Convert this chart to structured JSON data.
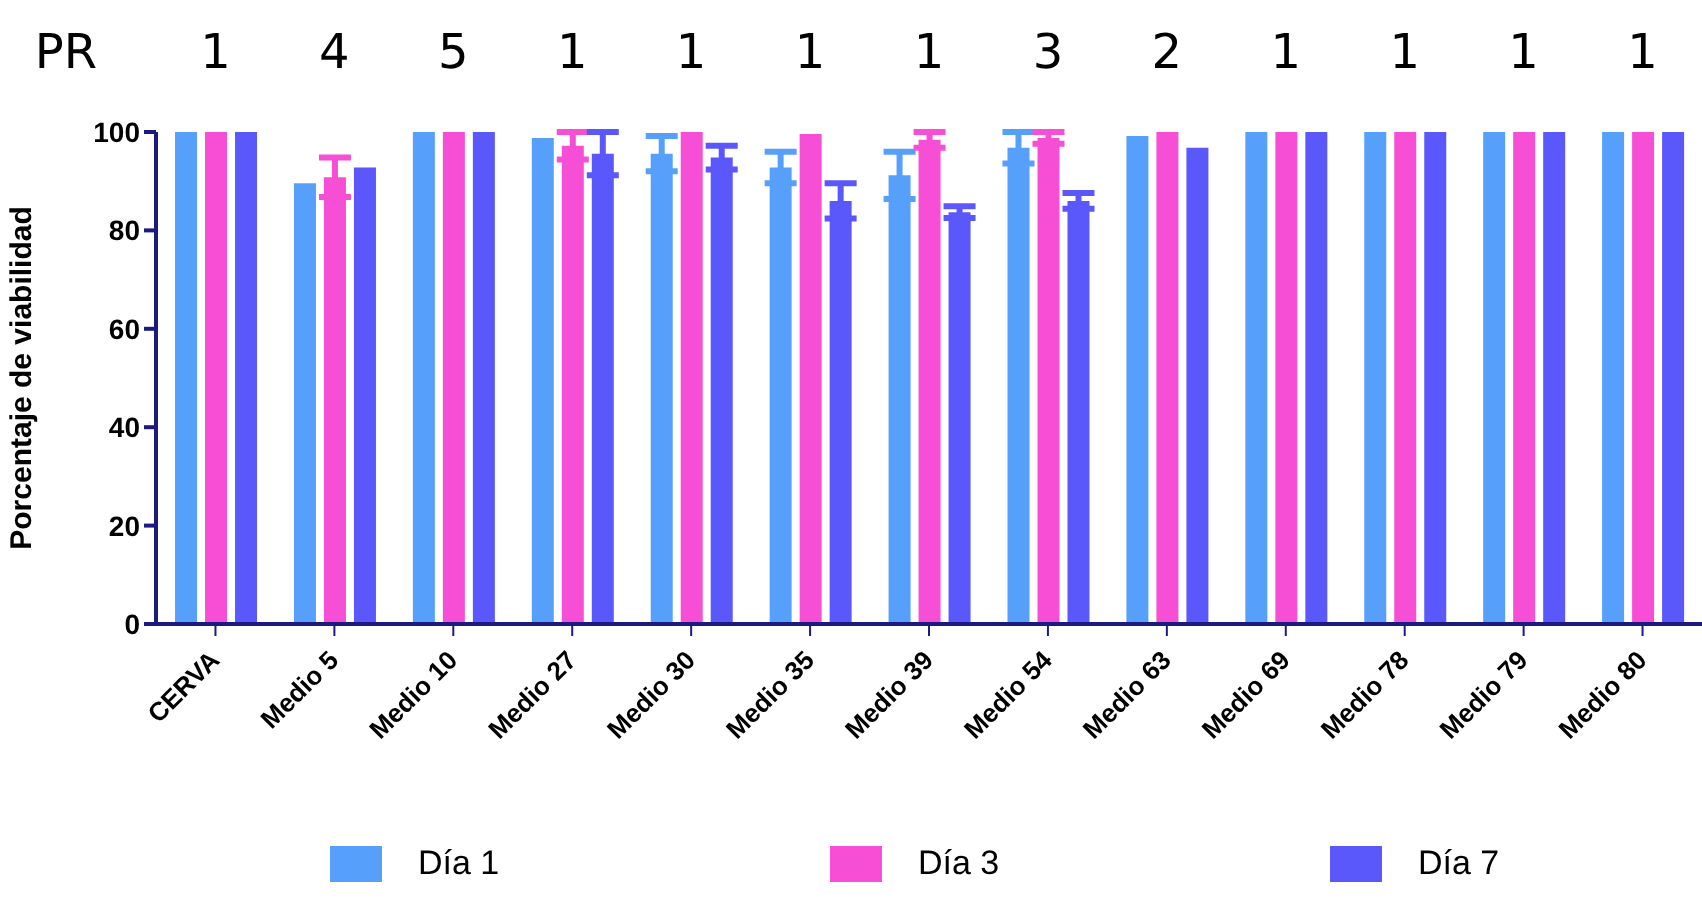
{
  "chart_data": {
    "type": "bar",
    "ylabel": "Porcentaje de viabilidad",
    "categories": [
      "CERVA",
      "Medio 5",
      "Medio 10",
      "Medio 27",
      "Medio 30",
      "Medio 35",
      "Medio 39",
      "Medio 54",
      "Medio 63",
      "Medio 69",
      "Medio 78",
      "Medio 79",
      "Medio 80"
    ],
    "series": [
      {
        "name": "Día 1",
        "color": "#56a0fb",
        "values": [
          100,
          89.6,
          100,
          98.8,
          95.6,
          92.8,
          91.2,
          96.8,
          99.2,
          100,
          100,
          100,
          100
        ],
        "errors": [
          null,
          null,
          null,
          null,
          3.6,
          3.2,
          4.8,
          3.2,
          null,
          null,
          null,
          null,
          null
        ]
      },
      {
        "name": "Día 3",
        "color": "#f64fd6",
        "values": [
          100,
          90.8,
          100,
          97.2,
          100,
          99.6,
          98.4,
          98.8,
          100,
          100,
          100,
          100,
          100
        ],
        "errors": [
          null,
          4,
          null,
          2.8,
          null,
          null,
          1.6,
          1.2,
          null,
          null,
          null,
          null,
          null
        ]
      },
      {
        "name": "Día 7",
        "color": "#5a57fb",
        "values": [
          100,
          92.8,
          100,
          95.6,
          94.8,
          86,
          83.7,
          86,
          96.8,
          100,
          100,
          100,
          100
        ],
        "errors": [
          null,
          null,
          null,
          4.4,
          2.4,
          3.6,
          1.2,
          1.6,
          null,
          null,
          null,
          null,
          null
        ]
      }
    ],
    "ylim": [
      0,
      100
    ],
    "yticks": [
      0,
      20,
      40,
      60,
      80,
      100
    ],
    "grid": false,
    "legend": "bottom",
    "annotations": [
      "PR",
      "1",
      "4",
      "5",
      "1",
      "1",
      "1",
      "1",
      "3",
      "2",
      "1",
      "1",
      "1",
      "1"
    ]
  }
}
